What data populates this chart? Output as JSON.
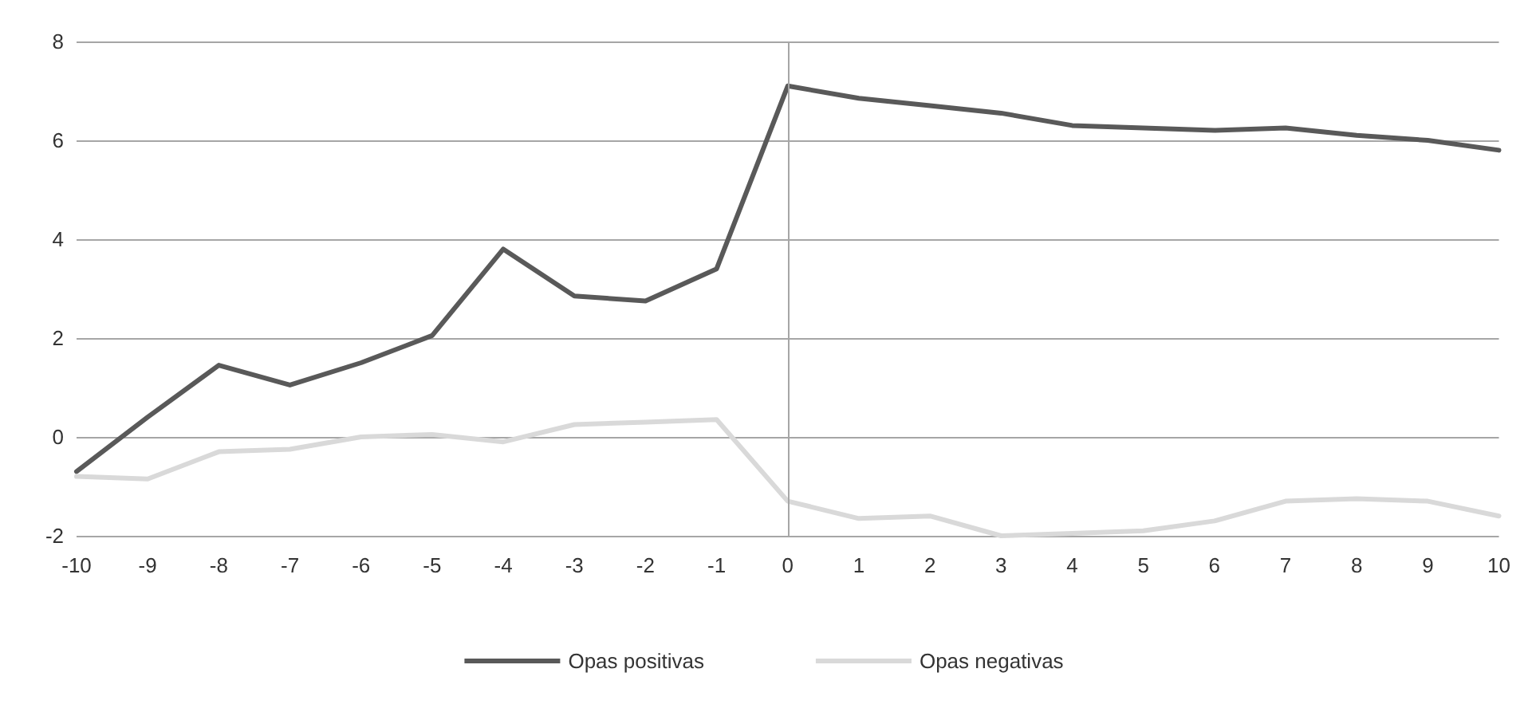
{
  "chart_data": {
    "type": "line",
    "categories": [
      "-10",
      "-9",
      "-8",
      "-7",
      "-6",
      "-5",
      "-4",
      "-3",
      "-2",
      "-1",
      "0",
      "1",
      "2",
      "3",
      "4",
      "5",
      "6",
      "7",
      "8",
      "9",
      "10"
    ],
    "series": [
      {
        "name": "Opas positivas",
        "color": "#595959",
        "values": [
          -0.7,
          0.4,
          1.45,
          1.05,
          1.5,
          2.05,
          3.8,
          2.85,
          2.75,
          3.4,
          7.1,
          6.85,
          6.7,
          6.55,
          6.3,
          6.25,
          6.2,
          6.25,
          6.1,
          6.0,
          5.8
        ]
      },
      {
        "name": "Opas negativas",
        "color": "#d9d9d9",
        "values": [
          -0.8,
          -0.85,
          -0.3,
          -0.25,
          0.0,
          0.05,
          -0.1,
          0.25,
          0.3,
          0.35,
          -1.3,
          -1.65,
          -1.6,
          -2.0,
          -1.95,
          -1.9,
          -1.7,
          -1.3,
          -1.25,
          -1.3,
          -1.6
        ]
      }
    ],
    "ylim": [
      -2,
      8
    ],
    "yticks": [
      -2,
      0,
      2,
      4,
      6,
      8
    ],
    "grid": "y",
    "legend": "bottom",
    "marker": "none",
    "line_style": "solid",
    "ref_lines": [
      {
        "axis": "x",
        "value": "0",
        "color": "#a6a6a6"
      }
    ]
  }
}
